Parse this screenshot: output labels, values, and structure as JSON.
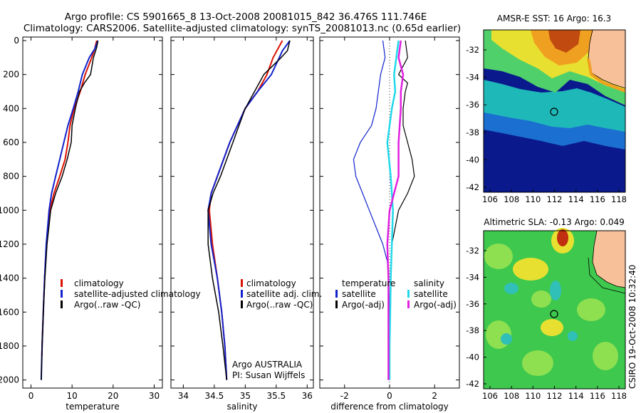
{
  "header": {
    "line1": "Argo profile: CS 5901665_8 13-Oct-2008 20081015_842 36.476S 111.746E",
    "line2": "Climatology: CARS2006. Satellite-adjusted climatology: synTS_20081013.nc (0.65d earlier)"
  },
  "side_label": "CSIRO 19-Oct-2008 10:32:40",
  "colors": {
    "climatology": "#dd1100",
    "satellite": "#1122cc",
    "argo": "#000000",
    "satellite_diff": "#22d8ea",
    "argo_diff": "#e020e0"
  },
  "chart_data": [
    {
      "type": "line",
      "xlabel": "temperature",
      "xlim": [
        -2,
        32
      ],
      "ylim": [
        0,
        2050
      ],
      "yreversed": true,
      "xticks": [
        0,
        10,
        20,
        30
      ],
      "yticks": [
        0,
        200,
        400,
        600,
        800,
        1000,
        1200,
        1400,
        1600,
        1800,
        2000
      ],
      "legend": {
        "placement": "lower-right",
        "labels": [
          "climatology",
          "satellite-adjusted climatology",
          "Argo(..raw -QC)"
        ]
      },
      "series": [
        {
          "name": "climatology",
          "depth": [
            0,
            50,
            100,
            200,
            300,
            400,
            500,
            600,
            700,
            800,
            900,
            1000,
            1200,
            1400,
            1600,
            1800,
            1860
          ],
          "values": [
            16.0,
            15.5,
            14.8,
            13.2,
            12.0,
            10.5,
            9.5,
            9.0,
            8.3,
            7.0,
            5.6,
            4.6,
            3.8,
            3.3,
            3.0,
            2.7,
            2.65
          ]
        },
        {
          "name": "satellite-adjusted climatology",
          "depth": [
            0,
            50,
            100,
            200,
            300,
            400,
            500,
            600,
            700,
            800,
            900,
            1000,
            1200,
            1400,
            1600,
            1800,
            2000
          ],
          "values": [
            16.3,
            15.5,
            14.2,
            12.5,
            11.5,
            10.3,
            9.0,
            8.0,
            7.0,
            6.0,
            5.0,
            4.4,
            3.7,
            3.3,
            3.0,
            2.7,
            2.5
          ]
        },
        {
          "name": "Argo(..raw -QC)",
          "depth": [
            0,
            40,
            100,
            200,
            250,
            300,
            400,
            500,
            600,
            700,
            800,
            900,
            1000,
            1200,
            1400,
            1600,
            1800,
            2000
          ],
          "values": [
            16.3,
            16.0,
            15.2,
            14.5,
            13.0,
            11.8,
            10.8,
            10.0,
            9.8,
            8.8,
            7.6,
            6.0,
            4.8,
            3.9,
            3.4,
            3.0,
            2.7,
            2.5
          ]
        }
      ]
    },
    {
      "type": "line",
      "xlabel": "salinity",
      "xlim": [
        33.8,
        36.1
      ],
      "ylim": [
        0,
        2050
      ],
      "yreversed": true,
      "xticks": [
        34,
        34.5,
        35,
        35.5,
        36
      ],
      "legend": {
        "placement": "lower-right",
        "labels": [
          "climatology",
          "satellite adj. clim.",
          "Argo(..raw -QC)"
        ]
      },
      "annotations": [
        "Argo AUSTRALIA",
        "PI: Susan Wijffels"
      ],
      "series": [
        {
          "name": "climatology",
          "depth": [
            0,
            100,
            200,
            300,
            400,
            600,
            800,
            900,
            1000,
            1200,
            1400,
            1600,
            1800,
            2000
          ],
          "values": [
            35.6,
            35.45,
            35.35,
            35.2,
            35.0,
            34.75,
            34.55,
            34.45,
            34.42,
            34.47,
            34.55,
            34.62,
            34.67,
            34.7
          ]
        },
        {
          "name": "satellite adj. clim.",
          "depth": [
            0,
            60,
            100,
            200,
            300,
            400,
            600,
            800,
            900,
            1000,
            1200,
            1400,
            1600,
            1800,
            2000
          ],
          "values": [
            35.72,
            35.6,
            35.55,
            35.42,
            35.2,
            35.0,
            34.75,
            34.55,
            34.45,
            34.4,
            34.45,
            34.55,
            34.62,
            34.67,
            34.7
          ]
        },
        {
          "name": "Argo(..raw -QC)",
          "depth": [
            0,
            60,
            100,
            200,
            300,
            400,
            600,
            800,
            900,
            1000,
            1200,
            1400,
            1600,
            1800,
            2000
          ],
          "values": [
            35.72,
            35.68,
            35.58,
            35.3,
            35.15,
            35.0,
            34.8,
            34.6,
            34.48,
            34.4,
            34.4,
            34.47,
            34.57,
            34.64,
            34.7
          ]
        }
      ]
    },
    {
      "type": "line",
      "xlabel": "difference from climatology",
      "xlim": [
        -3.1,
        3.1
      ],
      "ylim": [
        0,
        2050
      ],
      "yreversed": true,
      "xticks": [
        -2,
        0,
        2
      ],
      "legend": {
        "placement": "lower-center",
        "headers": [
          "temperature",
          "salinity"
        ],
        "labels": [
          "satellite",
          "Argo(-adj)",
          "satellite",
          "Argo(-adj)"
        ]
      },
      "series": [
        {
          "name": "temperature satellite",
          "depth": [
            0,
            100,
            200,
            300,
            400,
            500,
            600,
            700,
            800,
            900,
            1000,
            1100,
            1200,
            1300,
            1400,
            1600,
            1800,
            2000
          ],
          "values": [
            -0.3,
            -0.2,
            -0.4,
            -0.5,
            -0.6,
            -0.8,
            -1.3,
            -1.6,
            -1.5,
            -1.2,
            -0.9,
            -0.6,
            -0.3,
            -0.1,
            -0.05,
            0.0,
            0.0,
            -0.05
          ]
        },
        {
          "name": "temperature Argo(-adj)",
          "depth": [
            0,
            100,
            200,
            250,
            300,
            400,
            500,
            600,
            700,
            800,
            900,
            1000,
            1200,
            1400,
            1600,
            1800,
            2000
          ],
          "values": [
            0.7,
            0.8,
            0.4,
            0.8,
            0.7,
            0.6,
            0.6,
            0.8,
            1.0,
            1.1,
            0.8,
            0.4,
            0.1,
            0.05,
            0.02,
            0.0,
            0.0
          ]
        },
        {
          "name": "salinity satellite",
          "depth": [
            0,
            100,
            200,
            300,
            400,
            600,
            800,
            1000,
            1200,
            1400,
            1600,
            1800,
            2000
          ],
          "values": [
            0.4,
            0.3,
            0.2,
            0.25,
            0.1,
            -0.1,
            0.05,
            0.15,
            0.1,
            0.05,
            0.03,
            0.0,
            0.0
          ]
        },
        {
          "name": "salinity Argo(-adj)",
          "depth": [
            0,
            100,
            200,
            300,
            400,
            600,
            800,
            1000,
            1200,
            1400,
            1600,
            1800,
            2000
          ],
          "values": [
            0.5,
            0.4,
            0.6,
            0.5,
            0.5,
            0.4,
            0.4,
            0.0,
            -0.1,
            -0.05,
            -0.05,
            -0.05,
            -0.05
          ]
        }
      ]
    }
  ],
  "maps": [
    {
      "title": "AMSR-E SST: 16 Argo: 16.3",
      "xticks": [
        "106",
        "108",
        "110",
        "112",
        "114",
        "116",
        "118"
      ],
      "yticks": [
        "-32",
        "-34",
        "-36",
        "-38",
        "-40",
        "-42"
      ],
      "colors": {
        "ocean_deep": "#0a1a8c",
        "ocean_mid": "#1a6fd0",
        "ocean_cyan": "#1fb8b8",
        "ocean_green": "#4fd06a",
        "ocean_yellow": "#e8e030",
        "ocean_orange": "#f0a020",
        "ocean_warm": "#c04a10",
        "land": "#f8c098"
      }
    },
    {
      "title": "Altimetric SLA: -0.13 Argo: 0.049",
      "xticks": [
        "106",
        "108",
        "110",
        "112",
        "114",
        "116",
        "118"
      ],
      "yticks": [
        "-32",
        "-34",
        "-36",
        "-38",
        "-40",
        "-42"
      ],
      "colors": {
        "ocean_base": "#3ec84e",
        "ocean_light": "#8ee050",
        "ocean_yellow": "#e8e030",
        "ocean_cyan": "#30c0b8",
        "ocean_red": "#c03010",
        "land": "#f8c098"
      }
    }
  ]
}
